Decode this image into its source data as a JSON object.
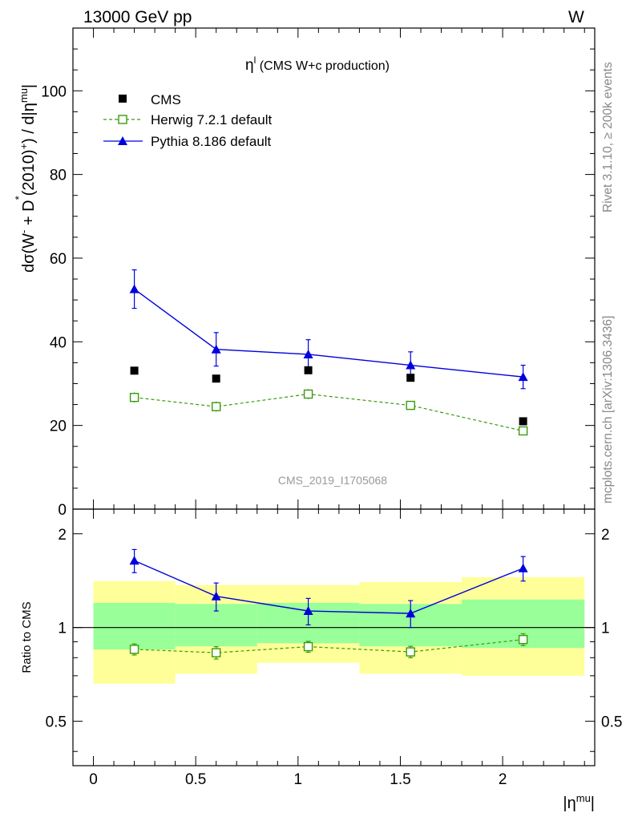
{
  "header": {
    "left": "13000 GeV pp",
    "right": "W"
  },
  "side": {
    "rivet": "Rivet 3.1.10, ≥ 200k events",
    "mcplots": "mcplots.cern.ch [arXiv:1306.3436]"
  },
  "watermark": "CMS_2019_I1705068",
  "colors": {
    "cms": "#000000",
    "herwig": "#3a9a0e",
    "pythia": "#0000dd",
    "band_outer": "#ffff99",
    "band_inner": "#99ff99"
  },
  "chart_data": [
    {
      "type": "scatter",
      "title": "η^l (CMS W+c production)",
      "title_main": "η",
      "title_sup": "l",
      "title_rest": " (CMS W+c production)",
      "ylabel": "dσ(W⁻ + D*(2010)⁺) / d|ηᵐᵘ|",
      "ylim": [
        0,
        115
      ],
      "yticks": [
        "0",
        "20",
        "40",
        "60",
        "80",
        "100"
      ],
      "xlim": [
        -0.1,
        2.45
      ],
      "legend_position": "top-left",
      "series": [
        {
          "name": "CMS",
          "style": "data",
          "x": [
            0.2,
            0.6,
            1.05,
            1.55,
            2.1
          ],
          "values": [
            33.1,
            31.2,
            33.2,
            31.4,
            21.0
          ]
        },
        {
          "name": "Herwig 7.2.1 default",
          "style": "dashed-open-square",
          "x": [
            0.2,
            0.6,
            1.05,
            1.55,
            2.1
          ],
          "values": [
            26.7,
            24.5,
            27.5,
            24.8,
            18.7
          ],
          "errors": [
            1.2,
            1.2,
            1.2,
            1.0,
            1.0
          ]
        },
        {
          "name": "Pythia 8.186 default",
          "style": "solid-triangle",
          "x": [
            0.2,
            0.6,
            1.05,
            1.55,
            2.1
          ],
          "values": [
            52.6,
            38.2,
            37.0,
            34.4,
            31.6
          ],
          "errors": [
            4.6,
            4.0,
            3.5,
            3.2,
            2.8
          ]
        }
      ]
    },
    {
      "type": "scatter",
      "ylabel": "Ratio to CMS",
      "xlabel": "|η^mu|",
      "xlabel_main": "|η",
      "xlabel_sup": "mu",
      "xlabel_end": "|",
      "yscale": "log",
      "ylim": [
        0.36,
        2.4
      ],
      "yticks": [
        {
          "v": 0.5,
          "label": "0.5"
        },
        {
          "v": 1,
          "label": "1"
        },
        {
          "v": 2,
          "label": "2"
        }
      ],
      "xticks": [
        {
          "v": 0,
          "label": "0"
        },
        {
          "v": 0.5,
          "label": "0.5"
        },
        {
          "v": 1,
          "label": "1"
        },
        {
          "v": 1.5,
          "label": "1.5"
        },
        {
          "v": 2,
          "label": "2"
        }
      ],
      "bins": [
        [
          0,
          0.4
        ],
        [
          0.4,
          0.8
        ],
        [
          0.8,
          1.3
        ],
        [
          1.3,
          1.8
        ],
        [
          1.8,
          2.4
        ]
      ],
      "band_outer": [
        [
          0.66,
          1.41
        ],
        [
          0.71,
          1.37
        ],
        [
          0.77,
          1.37
        ],
        [
          0.71,
          1.4
        ],
        [
          0.7,
          1.45
        ]
      ],
      "band_inner": [
        [
          0.85,
          1.2
        ],
        [
          0.87,
          1.19
        ],
        [
          0.89,
          1.2
        ],
        [
          0.87,
          1.19
        ],
        [
          0.86,
          1.23
        ]
      ],
      "series": [
        {
          "name": "Herwig 7.2.1 default",
          "x": [
            0.2,
            0.6,
            1.05,
            1.55,
            2.1
          ],
          "values": [
            0.851,
            0.83,
            0.868,
            0.835,
            0.915
          ],
          "errors": [
            0.035,
            0.038,
            0.035,
            0.035,
            0.04
          ]
        },
        {
          "name": "Pythia 8.186 default",
          "x": [
            0.2,
            0.6,
            1.05,
            1.55,
            2.1
          ],
          "values": [
            1.64,
            1.26,
            1.13,
            1.11,
            1.55
          ],
          "errors": [
            0.14,
            0.13,
            0.11,
            0.11,
            0.14
          ]
        }
      ]
    }
  ]
}
